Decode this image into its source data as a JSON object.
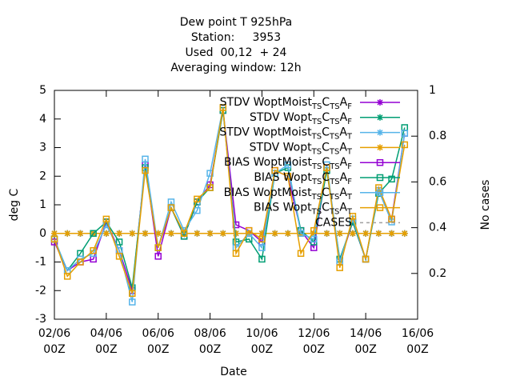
{
  "chart_data": {
    "type": "line",
    "title": [
      "Dew point T 925hPa",
      "Station:     3953",
      "Used  00,12  + 24",
      "Averaging window: 12h"
    ],
    "xlabel": "Date",
    "ylabel": "deg C",
    "y2label": "No cases",
    "x": [
      "02/06 00Z",
      "02/06 12Z",
      "03/06 00Z",
      "03/06 12Z",
      "04/06 00Z",
      "04/06 12Z",
      "05/06 00Z",
      "05/06 12Z",
      "06/06 00Z",
      "06/06 12Z",
      "07/06 00Z",
      "07/06 12Z",
      "08/06 00Z",
      "08/06 12Z",
      "09/06 00Z",
      "09/06 12Z",
      "10/06 00Z",
      "10/06 12Z",
      "11/06 00Z",
      "11/06 12Z",
      "12/06 00Z",
      "12/06 12Z",
      "13/06 00Z",
      "13/06 12Z",
      "14/06 00Z",
      "14/06 12Z",
      "15/06 00Z",
      "15/06 12Z"
    ],
    "xlim": [
      "02/06 00Z",
      "16/06 00Z"
    ],
    "xticks": [
      {
        "value": "02/06 00Z",
        "label": [
          "02/06",
          "00Z"
        ]
      },
      {
        "value": "04/06 00Z",
        "label": [
          "04/06",
          "00Z"
        ]
      },
      {
        "value": "06/06 00Z",
        "label": [
          "06/06",
          "00Z"
        ]
      },
      {
        "value": "08/06 00Z",
        "label": [
          "08/06",
          "00Z"
        ]
      },
      {
        "value": "10/06 00Z",
        "label": [
          "10/06",
          "00Z"
        ]
      },
      {
        "value": "12/06 00Z",
        "label": [
          "12/06",
          "00Z"
        ]
      },
      {
        "value": "14/06 00Z",
        "label": [
          "14/06",
          "00Z"
        ]
      },
      {
        "value": "16/06 00Z",
        "label": [
          "16/06",
          "00Z"
        ]
      }
    ],
    "ylim": [
      -3,
      5
    ],
    "yticks": [
      -3,
      -2,
      -1,
      0,
      1,
      2,
      3,
      4,
      5
    ],
    "y2lim": [
      0,
      1
    ],
    "y2ticks": [
      0.2,
      0.4,
      0.6,
      0.8,
      1
    ],
    "series": [
      {
        "name": [
          "STDV WoptMoist",
          "TS",
          "C",
          "TS",
          "A",
          "F"
        ],
        "color": "#9400d3",
        "marker": "star",
        "values": [
          0,
          0,
          0,
          0,
          0,
          0,
          0,
          0,
          0,
          0,
          0,
          0,
          0,
          0,
          0,
          0,
          0,
          0,
          0,
          0,
          0,
          0,
          0,
          0,
          0,
          0,
          0,
          0
        ]
      },
      {
        "name": [
          "STDV Wopt",
          "TS",
          "C",
          "TS",
          "A",
          "F"
        ],
        "color": "#009e73",
        "marker": "star",
        "values": [
          0,
          0,
          0,
          0,
          0,
          0,
          0,
          0,
          0,
          0,
          0,
          0,
          0,
          0,
          0,
          0,
          0,
          0,
          0,
          0,
          0,
          0,
          0,
          0,
          0,
          0,
          0,
          0
        ]
      },
      {
        "name": [
          "STDV WoptMoist",
          "TS",
          "C",
          "TS",
          "A",
          "T"
        ],
        "color": "#56b4e9",
        "marker": "star",
        "values": [
          0,
          0,
          0,
          0,
          0,
          0,
          0,
          0,
          0,
          0,
          0,
          0,
          0,
          0,
          0,
          0,
          0,
          0,
          0,
          0,
          0,
          0,
          0,
          0,
          0,
          0,
          0,
          0
        ]
      },
      {
        "name": [
          "STDV Wopt",
          "TS",
          "C",
          "TS",
          "A",
          "T"
        ],
        "color": "#e69f00",
        "marker": "star",
        "values": [
          0,
          0,
          0,
          0,
          0,
          0,
          0,
          0,
          0,
          0,
          0,
          0,
          0,
          0,
          0,
          0,
          0,
          0,
          0,
          0,
          0,
          0,
          0,
          0,
          0,
          0,
          0,
          0
        ]
      },
      {
        "name": [
          "BIAS WoptMoist",
          "TS",
          "C",
          "TS",
          "A",
          "F"
        ],
        "color": "#9400d3",
        "marker": "square",
        "values": [
          -0.3,
          -1.3,
          -1.0,
          -0.9,
          0.4,
          -0.6,
          -2.0,
          2.4,
          -0.8,
          0.9,
          -0.1,
          1.1,
          1.7,
          4.3,
          0.3,
          0.1,
          -0.3,
          2.2,
          2.0,
          0.1,
          -0.5,
          2.3,
          -1.0,
          0.4,
          -0.9,
          1.5,
          0.5,
          3.5
        ]
      },
      {
        "name": [
          "BIAS Wopt",
          "TS",
          "C",
          "TS",
          "A",
          "F"
        ],
        "color": "#009e73",
        "marker": "square",
        "values": [
          -0.2,
          -1.3,
          -0.7,
          0.0,
          0.4,
          -0.3,
          -1.9,
          2.3,
          -0.5,
          0.9,
          -0.1,
          1.1,
          1.6,
          4.3,
          -0.3,
          -0.2,
          -0.9,
          2.1,
          2.3,
          0.1,
          -0.3,
          2.2,
          -0.9,
          0.4,
          -0.9,
          1.4,
          1.9,
          3.7
        ]
      },
      {
        "name": [
          "BIAS WoptMoist",
          "TS",
          "C",
          "TS",
          "A",
          "T"
        ],
        "color": "#56b4e9",
        "marker": "square",
        "values": [
          -0.2,
          -1.3,
          -0.9,
          -0.7,
          0.3,
          -0.6,
          -2.4,
          2.6,
          -0.5,
          1.1,
          0.1,
          0.8,
          2.1,
          4.4,
          -0.5,
          0.0,
          -0.5,
          2.1,
          2.4,
          0.0,
          -0.2,
          2.4,
          -1.0,
          0.5,
          -0.9,
          1.5,
          0.4,
          3.5
        ]
      },
      {
        "name": [
          "BIAS Wopt",
          "TS",
          "C",
          "TS",
          "A",
          "T"
        ],
        "color": "#e69f00",
        "marker": "square",
        "values": [
          -0.2,
          -1.5,
          -1.0,
          -0.6,
          0.5,
          -0.8,
          -2.1,
          2.2,
          -0.5,
          0.9,
          0.0,
          1.2,
          1.6,
          4.4,
          -0.7,
          0.1,
          -0.2,
          2.2,
          2.0,
          -0.7,
          0.1,
          2.3,
          -1.2,
          0.6,
          -0.9,
          1.6,
          0.5,
          3.1
        ]
      },
      {
        "name": [
          "CASES"
        ],
        "color": "#a0a0a0",
        "marker": "none",
        "dash": true,
        "axis": "y2",
        "values": [
          null,
          null,
          null,
          null,
          null,
          null,
          null,
          null,
          null,
          null,
          null,
          null,
          null,
          null,
          null,
          null,
          null,
          null,
          null,
          null,
          null,
          null,
          null,
          null,
          null,
          null,
          null,
          null
        ]
      }
    ]
  }
}
